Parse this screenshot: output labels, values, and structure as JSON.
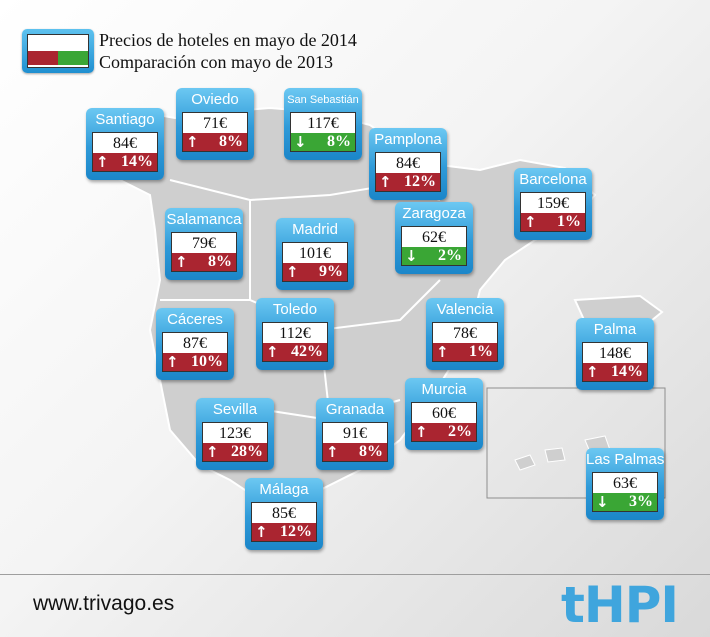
{
  "legend": {
    "line1": "Precios de hoteles en mayo de 2014",
    "line2": "Comparación con mayo de 2013"
  },
  "colors": {
    "increase": "#aa2530",
    "decrease": "#3aa635",
    "box": "#2f9ad8"
  },
  "cities": [
    {
      "name": "Santiago",
      "price": "84€",
      "dir": "up",
      "change": "14%"
    },
    {
      "name": "Oviedo",
      "price": "71€",
      "dir": "up",
      "change": "8%"
    },
    {
      "name": "San Sebastián",
      "price": "117€",
      "dir": "down",
      "change": "8%"
    },
    {
      "name": "Pamplona",
      "price": "84€",
      "dir": "up",
      "change": "12%"
    },
    {
      "name": "Barcelona",
      "price": "159€",
      "dir": "up",
      "change": "1%"
    },
    {
      "name": "Salamanca",
      "price": "79€",
      "dir": "up",
      "change": "8%"
    },
    {
      "name": "Madrid",
      "price": "101€",
      "dir": "up",
      "change": "9%"
    },
    {
      "name": "Zaragoza",
      "price": "62€",
      "dir": "down",
      "change": "2%"
    },
    {
      "name": "Cáceres",
      "price": "87€",
      "dir": "up",
      "change": "10%"
    },
    {
      "name": "Toledo",
      "price": "112€",
      "dir": "up",
      "change": "42%"
    },
    {
      "name": "Valencia",
      "price": "78€",
      "dir": "up",
      "change": "1%"
    },
    {
      "name": "Palma",
      "price": "148€",
      "dir": "up",
      "change": "14%"
    },
    {
      "name": "Sevilla",
      "price": "123€",
      "dir": "up",
      "change": "28%"
    },
    {
      "name": "Granada",
      "price": "91€",
      "dir": "up",
      "change": "8%"
    },
    {
      "name": "Murcia",
      "price": "60€",
      "dir": "up",
      "change": "2%"
    },
    {
      "name": "Las Palmas",
      "price": "63€",
      "dir": "down",
      "change": "3%"
    },
    {
      "name": "Málaga",
      "price": "85€",
      "dir": "up",
      "change": "12%"
    }
  ],
  "footer": {
    "website": "www.trivago.es",
    "logo": "tHPI"
  }
}
